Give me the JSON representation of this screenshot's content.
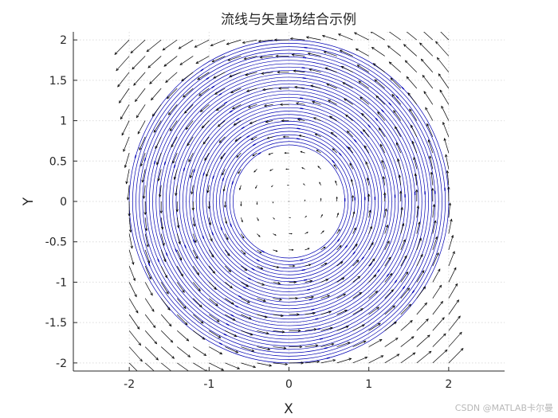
{
  "chart_data": {
    "type": "streamline-quiver",
    "title": "流线与矢量场结合示例",
    "xlabel": "X",
    "ylabel": "Y",
    "xlim": [
      -2.7,
      2.7
    ],
    "ylim": [
      -2.1,
      2.1
    ],
    "xticks": [
      -2,
      -1,
      0,
      1,
      2
    ],
    "xtick_labels": [
      "-2",
      "-1",
      "0",
      "1",
      "2"
    ],
    "yticks": [
      -2,
      -1.5,
      -1,
      -0.5,
      0,
      0.5,
      1,
      1.5,
      2
    ],
    "ytick_labels": [
      "-2",
      "-1.5",
      "-1",
      "-0.5",
      "0",
      "0.5",
      "1",
      "1.5",
      "2"
    ],
    "grid": true,
    "series": [
      {
        "kind": "streamlines",
        "color": "#0000b3",
        "description_field": "u = -y, v = x",
        "radius_range": [
          0.7,
          2.0
        ],
        "count": 32
      },
      {
        "kind": "vectors",
        "color": "#000000",
        "field": "u = -y, v = x",
        "x_range": [
          -2,
          2
        ],
        "y_range": [
          -2,
          2
        ],
        "step": 0.2
      }
    ]
  },
  "watermark": "CSDN @MATLAB卡尔曼"
}
